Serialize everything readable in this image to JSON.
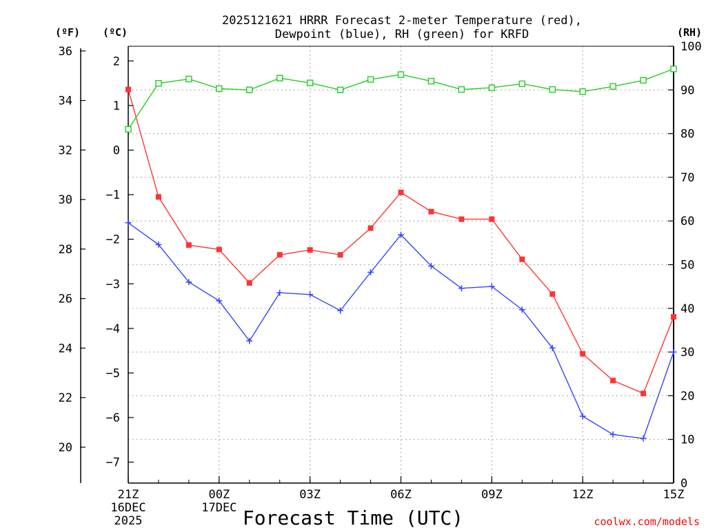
{
  "chart_data": {
    "type": "line",
    "title_line1": "2025121621 HRRR Forecast 2-meter Temperature (red),",
    "title_line2": "Dewpoint (blue), RH (green) for KRFD",
    "xlabel": "Forecast Time (UTC)",
    "credit": "coolwx.com/models",
    "units": {
      "fahrenheit": "(ºF)",
      "celsius": "(ºC)",
      "rh": "(RH)"
    },
    "x_hours": [
      0,
      1,
      2,
      3,
      4,
      5,
      6,
      7,
      8,
      9,
      10,
      11,
      12,
      13,
      14,
      15,
      16,
      17,
      18
    ],
    "x_ticks": [
      {
        "hour": 0,
        "label": "21Z",
        "date1": "16DEC",
        "date2": "2025"
      },
      {
        "hour": 3,
        "label": "00Z",
        "date1": "17DEC",
        "date2": ""
      },
      {
        "hour": 6,
        "label": "03Z",
        "date1": "",
        "date2": ""
      },
      {
        "hour": 9,
        "label": "06Z",
        "date1": "",
        "date2": ""
      },
      {
        "hour": 12,
        "label": "09Z",
        "date1": "",
        "date2": ""
      },
      {
        "hour": 15,
        "label": "12Z",
        "date1": "",
        "date2": ""
      },
      {
        "hour": 18,
        "label": "15Z",
        "date1": "",
        "date2": ""
      }
    ],
    "celsius_axis": {
      "range": [
        -7.47,
        2.33
      ],
      "ticks": [
        2,
        1,
        0,
        -1,
        -2,
        -3,
        -4,
        -5,
        -6,
        -7
      ],
      "tick_labels": [
        "2",
        "1",
        "0",
        "−1",
        "−2",
        "−3",
        "−4",
        "−5",
        "−6",
        "−7"
      ]
    },
    "fahrenheit_axis": {
      "range": [
        18.55,
        36.19
      ],
      "ticks": [
        20,
        22,
        24,
        26,
        28,
        30,
        32,
        34,
        36
      ],
      "tick_labels": [
        "20",
        "22",
        "24",
        "26",
        "28",
        "30",
        "32",
        "34",
        "36"
      ]
    },
    "rh_axis": {
      "range": [
        0,
        100
      ],
      "ticks": [
        0,
        10,
        20,
        30,
        40,
        50,
        60,
        70,
        80,
        90,
        100
      ],
      "tick_labels": [
        "0",
        "10",
        "20",
        "30",
        "40",
        "50",
        "60",
        "70",
        "80",
        "90",
        "100"
      ]
    },
    "series": [
      {
        "name": "Temperature",
        "axis": "celsius",
        "color": "#ff3333",
        "marker": "filled-square",
        "values": [
          1.36,
          -1.05,
          -2.13,
          -2.23,
          -2.98,
          -2.35,
          -2.24,
          -2.35,
          -1.75,
          -0.95,
          -1.38,
          -1.55,
          -1.55,
          -2.45,
          -3.23,
          -4.57,
          -5.17,
          -5.46,
          -3.74
        ]
      },
      {
        "name": "Dewpoint",
        "axis": "celsius",
        "color": "#3344ff",
        "marker": "plus",
        "values": [
          -1.63,
          -2.12,
          -2.96,
          -3.38,
          -4.28,
          -3.2,
          -3.24,
          -3.6,
          -2.74,
          -1.9,
          -2.6,
          -3.1,
          -3.06,
          -3.58,
          -4.44,
          -5.97,
          -6.38,
          -6.47,
          -4.53
        ]
      },
      {
        "name": "RH",
        "axis": "rh",
        "color": "#22cc22",
        "marker": "open-square",
        "values": [
          81,
          91.5,
          92.5,
          90.3,
          90,
          92.7,
          91.6,
          90,
          92.4,
          93.5,
          92,
          90.1,
          90.5,
          91.4,
          90.1,
          89.6,
          90.8,
          92.2,
          94.8
        ]
      }
    ]
  }
}
